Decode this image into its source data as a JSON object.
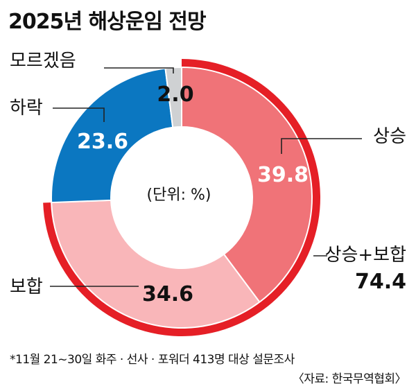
{
  "header": {
    "title": "2025년 해상운임 전망"
  },
  "chart_data": {
    "type": "pie",
    "variant": "donut",
    "unit_note": "(단위: %)",
    "slices": [
      {
        "label": "상승",
        "value": 39.8,
        "value_label": "39.8",
        "color": "#f07378"
      },
      {
        "label": "보합",
        "value": 34.6,
        "value_label": "34.6",
        "color": "#f9b6b9"
      },
      {
        "label": "하락",
        "value": 23.6,
        "value_label": "23.6",
        "color": "#0b77c1"
      },
      {
        "label": "모르겠음",
        "value": 2.0,
        "value_label": "2.0",
        "color": "#cfd1d3"
      }
    ],
    "combined": {
      "label": "상승+보합",
      "value": 74.4,
      "value_label": "74.4",
      "color": "#e51f26"
    }
  },
  "footer": {
    "note": "*11월 21~30일 화주 · 선사 · 포워더 413명 대상 설문조사",
    "source": "〈자료: 한국무역협회〉"
  }
}
